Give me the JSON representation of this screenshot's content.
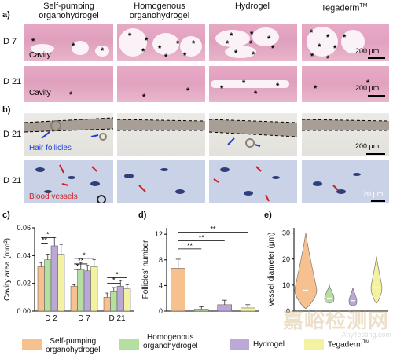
{
  "columns": [
    "Self-pumping organohydrogel",
    "Homogenous organohydrogel",
    "Hydrogel",
    "Tegaderm"
  ],
  "columns_tm": "TM",
  "panel_a": {
    "label": "a)",
    "rows": [
      "D 7",
      "D 21"
    ],
    "cavity_label": "Cavity",
    "scale": "200 μm"
  },
  "panel_b": {
    "label": "b)",
    "rows": [
      "D 21",
      "D 21"
    ],
    "hair_label": "Hair follicles",
    "vessel_label": "Blood vessels",
    "scale1": "200 μm",
    "scale2": "20 μm"
  },
  "panel_c": {
    "label": "c)"
  },
  "panel_d": {
    "label": "d)"
  },
  "panel_e": {
    "label": "e)"
  },
  "colors": {
    "self_pumping": "#f7c08f",
    "homogenous": "#b4dfa0",
    "hydrogel": "#bba8d6",
    "tegaderm": "#f2f2a0",
    "hair_arrow": "#1f3fd1",
    "vessel_arrow": "#d11f1f"
  },
  "chart_data": [
    {
      "type": "bar",
      "ylabel": "Cavity area (mm²)",
      "ylim": [
        0,
        0.06
      ],
      "yticks": [
        "0.00",
        "0.02",
        "0.04",
        "0.06"
      ],
      "categories": [
        "D 2",
        "D 7",
        "D 21"
      ],
      "series": [
        {
          "name": "Self-pumping organohydrogel",
          "values": [
            0.032,
            0.018,
            0.01
          ],
          "errors": [
            0.003,
            0.001,
            0.003
          ]
        },
        {
          "name": "Homogenous organohydrogel",
          "values": [
            0.037,
            0.03,
            0.014
          ],
          "errors": [
            0.004,
            0.005,
            0.003
          ]
        },
        {
          "name": "Hydrogel",
          "values": [
            0.047,
            0.029,
            0.018
          ],
          "errors": [
            0.006,
            0.004,
            0.004
          ]
        },
        {
          "name": "Tegaderm",
          "values": [
            0.041,
            0.032,
            0.016
          ],
          "errors": [
            0.007,
            0.005,
            0.003
          ]
        }
      ],
      "significance": [
        "*",
        "**",
        "*",
        "**",
        "*",
        "*",
        "*"
      ]
    },
    {
      "type": "bar",
      "ylabel": "Follicles' number",
      "ylim": [
        0,
        13
      ],
      "yticks": [
        "0",
        "4",
        "8",
        "12"
      ],
      "categories": [
        "Self-pumping organohydrogel",
        "Homogenous organohydrogel",
        "Hydrogel",
        "Tegaderm"
      ],
      "values": [
        6.7,
        0.3,
        1.0,
        0.5
      ],
      "errors": [
        1.4,
        0.4,
        0.7,
        0.5
      ],
      "significance": [
        "**",
        "**",
        "**"
      ]
    },
    {
      "type": "violin",
      "ylabel": "Vessel diameter (μm)",
      "ylim": [
        0,
        32
      ],
      "yticks": [
        "0",
        "10",
        "20",
        "30"
      ],
      "categories": [
        "Self-pumping organohydrogel",
        "Homogenous organohydrogel",
        "Hydrogel",
        "Tegaderm"
      ],
      "ranges": [
        [
          1,
          30
        ],
        [
          3,
          10
        ],
        [
          2,
          9
        ],
        [
          3,
          21
        ]
      ],
      "medians": [
        8,
        5,
        4,
        9
      ]
    }
  ],
  "legend": {
    "items": [
      {
        "line1": "Self-pumping",
        "line2": "organohydrogel"
      },
      {
        "line1": "Homogenous",
        "line2": "organohydrogel"
      },
      {
        "line1": "Hydrogel",
        "line2": ""
      },
      {
        "line1": "Tegaderm",
        "line2": ""
      }
    ],
    "tm": "TM"
  },
  "watermark": {
    "text": "嘉峪检测网",
    "sub": "AnyTesting.com"
  }
}
